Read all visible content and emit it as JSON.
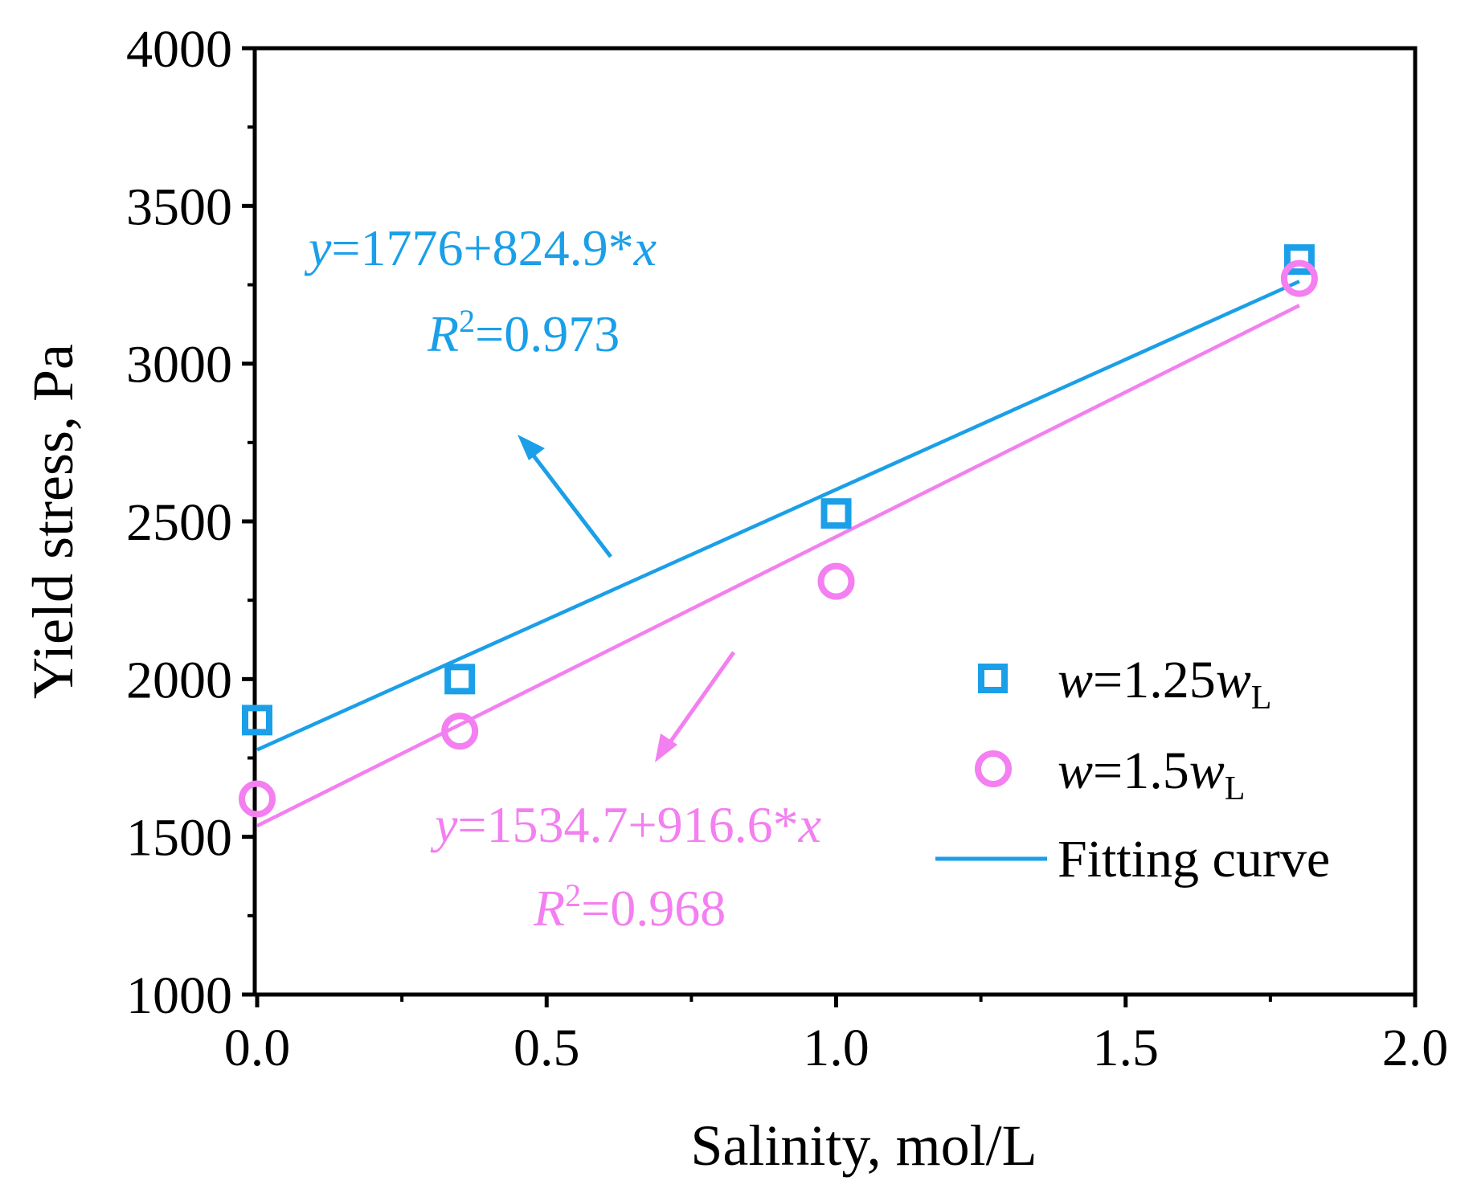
{
  "chart_data": {
    "type": "scatter",
    "title": "",
    "xlabel": "Salinity, mol/L",
    "ylabel": "Yield stress, Pa",
    "xlim": [
      0.0,
      2.0
    ],
    "ylim": [
      1000,
      4000
    ],
    "x_ticks": [
      "0.0",
      "0.5",
      "1.0",
      "1.5",
      "2.0"
    ],
    "y_ticks": [
      "1000",
      "1500",
      "2000",
      "2500",
      "3000",
      "3500",
      "4000"
    ],
    "x_tick_values": [
      0.0,
      0.5,
      1.0,
      1.5,
      2.0
    ],
    "y_tick_values": [
      1000,
      1500,
      2000,
      2500,
      3000,
      3500,
      4000
    ],
    "legend_position": "right",
    "series": [
      {
        "name": "w=1.25wL",
        "marker": "square",
        "color": "#1a9fe8",
        "x": [
          0.0,
          0.35,
          1.0,
          1.8
        ],
        "values": [
          1870,
          2000,
          2525,
          3330
        ],
        "fit": {
          "intercept": 1776,
          "slope": 824.9,
          "x_range": [
            0.0,
            1.8
          ]
        }
      },
      {
        "name": "w=1.5wL",
        "marker": "circle",
        "color": "#f37ff0",
        "x": [
          0.0,
          0.35,
          1.0,
          1.8
        ],
        "values": [
          1620,
          1835,
          2310,
          3270
        ],
        "fit": {
          "intercept": 1534.7,
          "slope": 916.6,
          "x_range": [
            0.0,
            1.8
          ]
        }
      }
    ],
    "legend": [
      {
        "var": "w",
        "eq": "=1.25",
        "var2": "w",
        "sub": "L",
        "kind": "square"
      },
      {
        "var": "w",
        "eq": "=1.5",
        "var2": "w",
        "sub": "L",
        "kind": "circle"
      },
      {
        "label": "Fitting curve",
        "kind": "line"
      }
    ],
    "annotations": [
      {
        "equation_var": "y",
        "equation_body": "=1776+824.9*",
        "equation_x": "x",
        "r_var": "R",
        "r_sup": "2",
        "r_value": "=0.973",
        "color": "#1a9fe8"
      },
      {
        "equation_var": "y",
        "equation_body": "=1534.7+916.6*",
        "equation_x": "x",
        "r_var": "R",
        "r_sup": "2",
        "r_value": "=0.968",
        "color": "#f37ff0"
      }
    ]
  }
}
